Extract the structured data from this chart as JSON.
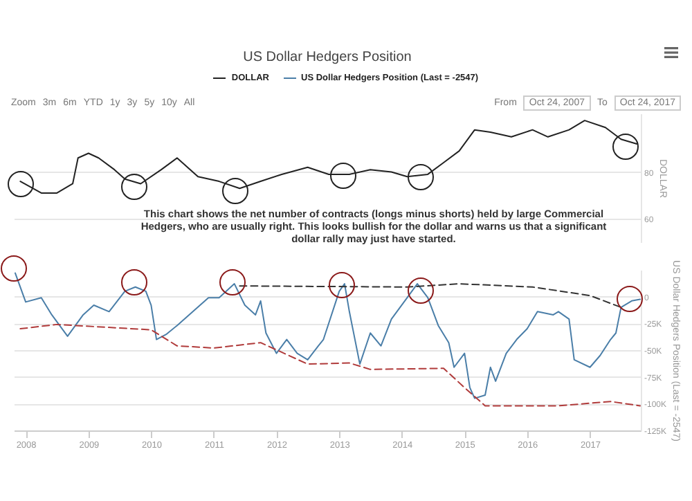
{
  "chart_data": [
    {
      "type": "line",
      "title": "US Dollar Hedgers Position",
      "ylabel": "DOLLAR",
      "legend": "top",
      "grid": "y",
      "tick_labels": "y",
      "annotations": [
        "Zoom",
        "3m",
        "6m",
        "YTD",
        "1y",
        "3y",
        "5y",
        "10y",
        "All",
        "From",
        "Oct 24, 2007",
        "To",
        "Oct 24, 2017",
        "This chart shows the net number of contracts (longs minus shorts) held by large Commercial Hedgers, who are usually right. This looks bullish for the dollar and warns us that a significant dollar rally may just have started."
      ],
      "xlim": [
        "2007-10-24",
        "2017-10-24"
      ],
      "ylim": [
        50,
        105
      ],
      "yticks": [
        60,
        80
      ],
      "series": [
        {
          "name": "DOLLAR",
          "color": "#222222",
          "x": [
            "2007-12",
            "2008-04",
            "2008-07",
            "2008-10",
            "2008-11",
            "2009-01",
            "2009-03",
            "2009-06",
            "2009-08",
            "2009-11",
            "2010-03",
            "2010-06",
            "2010-10",
            "2011-02",
            "2011-06",
            "2011-10",
            "2012-02",
            "2012-07",
            "2012-11",
            "2013-03",
            "2013-07",
            "2013-11",
            "2014-02",
            "2014-06",
            "2014-09",
            "2014-12",
            "2015-03",
            "2015-06",
            "2015-10",
            "2016-02",
            "2016-05",
            "2016-09",
            "2016-12",
            "2017-04",
            "2017-07",
            "2017-10"
          ],
          "values": [
            76,
            71,
            71,
            75,
            86,
            88,
            86,
            81,
            77,
            75,
            81,
            86,
            78,
            76,
            73,
            76,
            79,
            82,
            79,
            79,
            81,
            80,
            78,
            79,
            84,
            89,
            98,
            97,
            95,
            98,
            95,
            98,
            102,
            99,
            94,
            92
          ]
        }
      ]
    },
    {
      "type": "line",
      "ylabel": "US Dollar Hedgers Position (Last = -2547)",
      "legend": "top",
      "grid": "y",
      "xlim": [
        "2007-10-24",
        "2017-10-24"
      ],
      "ylim": [
        -125000,
        25000
      ],
      "xticks": [
        {
          "value": "2008-01-01",
          "label": "2008"
        },
        {
          "value": "2009-01-01",
          "label": "2009"
        },
        {
          "value": "2010-01-01",
          "label": "2010"
        },
        {
          "value": "2011-01-01",
          "label": "2011"
        },
        {
          "value": "2012-01-01",
          "label": "2012"
        },
        {
          "value": "2013-01-01",
          "label": "2013"
        },
        {
          "value": "2014-01-01",
          "label": "2014"
        },
        {
          "value": "2015-01-01",
          "label": "2015"
        },
        {
          "value": "2016-01-01",
          "label": "2016"
        },
        {
          "value": "2017-01-01",
          "label": "2017"
        }
      ],
      "yticks": [
        {
          "value": 0,
          "label": "0"
        },
        {
          "value": -25000,
          "label": "-25K"
        },
        {
          "value": -50000,
          "label": "-50K"
        },
        {
          "value": -75000,
          "label": "-75K"
        },
        {
          "value": -100000,
          "label": "-100K"
        },
        {
          "value": -125000,
          "label": "-125K"
        }
      ],
      "series": [
        {
          "name": "US Dollar Hedgers Position (Last = -2547)",
          "color": "#4a7ea8",
          "x": [
            "2007-11",
            "2008-01",
            "2008-04",
            "2008-06",
            "2008-09",
            "2008-12",
            "2009-02",
            "2009-05",
            "2009-08",
            "2009-10",
            "2009-12",
            "2010-01",
            "2010-02",
            "2010-04",
            "2010-06",
            "2010-09",
            "2010-12",
            "2011-02",
            "2011-05",
            "2011-07",
            "2011-09",
            "2011-10",
            "2011-11",
            "2012-01",
            "2012-03",
            "2012-05",
            "2012-07",
            "2012-09",
            "2012-10",
            "2013-01",
            "2013-02",
            "2013-03",
            "2013-05",
            "2013-07",
            "2013-09",
            "2013-11",
            "2014-02",
            "2014-04",
            "2014-06",
            "2014-08",
            "2014-10",
            "2014-11",
            "2015-01",
            "2015-02",
            "2015-03",
            "2015-05",
            "2015-06",
            "2015-07",
            "2015-09",
            "2015-11",
            "2016-01",
            "2016-03",
            "2016-06",
            "2016-07",
            "2016-09",
            "2016-10",
            "2017-01",
            "2017-03",
            "2017-05",
            "2017-06",
            "2017-07",
            "2017-09",
            "2017-10-20"
          ],
          "values": [
            22000,
            -5000,
            -1000,
            -17000,
            -37000,
            -17000,
            -8000,
            -14000,
            5000,
            9000,
            5000,
            -8000,
            -40000,
            -35000,
            -27000,
            -14000,
            -1000,
            -1000,
            12000,
            -8000,
            -17000,
            -4000,
            -34000,
            -53000,
            -40000,
            -53000,
            -59000,
            -46000,
            -40000,
            5000,
            12000,
            -14000,
            -63000,
            -34000,
            -46000,
            -21000,
            -1000,
            12000,
            -1000,
            -27000,
            -43000,
            -66000,
            -53000,
            -85000,
            -95000,
            -92000,
            -66000,
            -79000,
            -53000,
            -40000,
            -30000,
            -14000,
            -17000,
            -14000,
            -21000,
            -59000,
            -66000,
            -55000,
            -40000,
            -34000,
            -10000,
            -4000,
            -2547
          ]
        },
        {
          "color": "#b03a3a",
          "line_style": "dashed",
          "x": [
            "2007-12",
            "2008-07",
            "2010-01",
            "2010-06",
            "2011-01",
            "2011-10",
            "2012-07",
            "2013-03",
            "2013-07",
            "2014-09",
            "2015-01",
            "2015-05",
            "2016-07",
            "2017-05",
            "2017-10-20"
          ],
          "values": [
            -30000,
            -26000,
            -31000,
            -46000,
            -48000,
            -43000,
            -63000,
            -62000,
            -68000,
            -67000,
            -85000,
            -102000,
            -102000,
            -98000,
            -102000
          ]
        },
        {
          "color": "#333333",
          "line_style": "dashed",
          "x": [
            "2011-06",
            "2014-02",
            "2014-12",
            "2016-02",
            "2017-01",
            "2017-07"
          ],
          "values": [
            10000,
            9000,
            12000,
            9000,
            1000,
            -10000
          ]
        }
      ]
    }
  ]
}
